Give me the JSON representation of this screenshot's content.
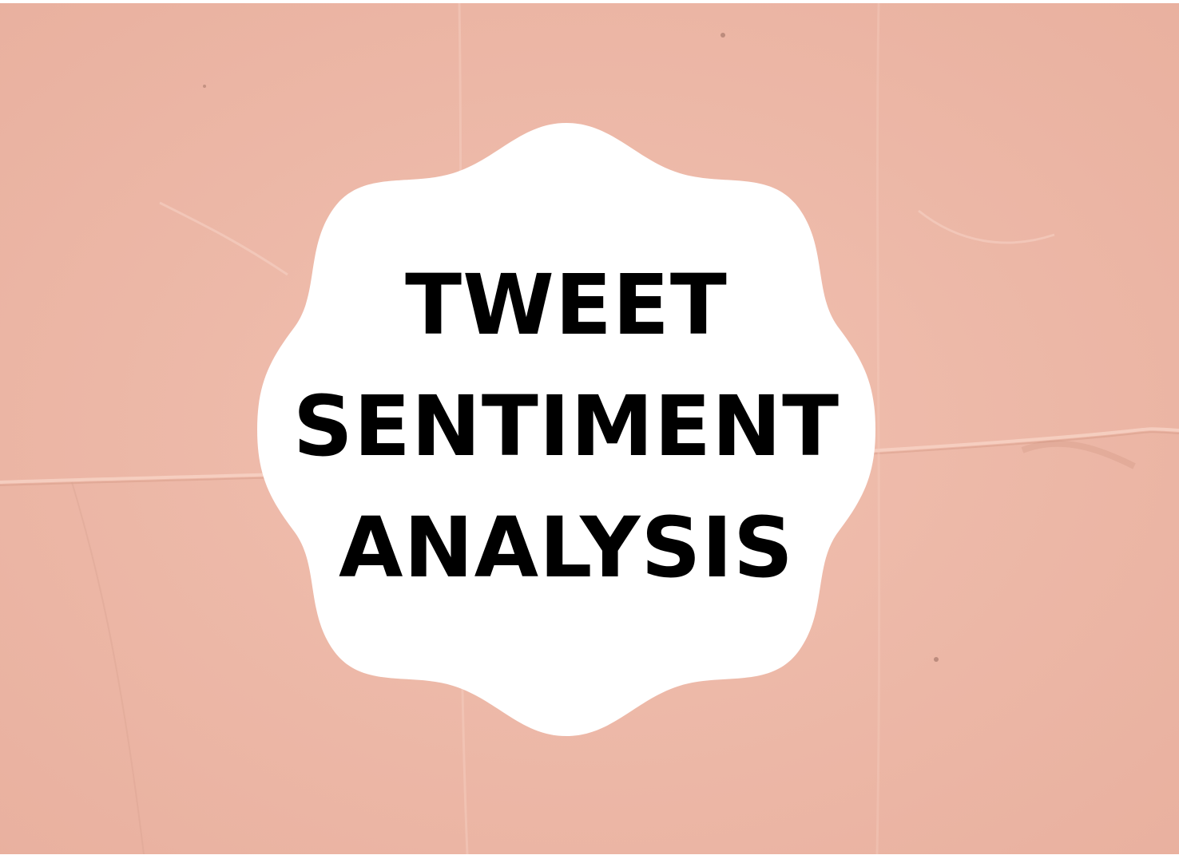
{
  "colors": {
    "paper": "#eeb9a8",
    "badge": "#ffffff",
    "text": "#000000"
  },
  "badge": {
    "shape": "scalloped-circle",
    "lines": [
      "TWEET",
      "SENTIMENT",
      "ANALYSIS"
    ]
  }
}
